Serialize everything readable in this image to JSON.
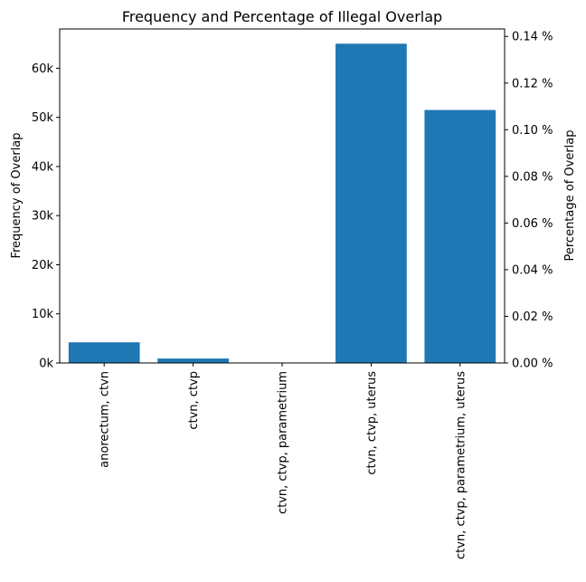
{
  "chart_data": {
    "type": "bar",
    "title": "Frequency and Percentage of Illegal Overlap",
    "xlabel": "",
    "ylabel": "Frequency of Overlap",
    "y2label": "Percentage of Overlap",
    "categories": [
      "anorectum, ctvn",
      "ctvn, ctvp",
      "ctvn, ctvp, parametrium",
      "ctvn, ctvp, uterus",
      "ctvn, ctvp, parametrium, uterus"
    ],
    "values": [
      4200,
      900,
      50,
      65000,
      51500
    ],
    "ylim": [
      0,
      68000
    ],
    "yticks": [
      0,
      10000,
      20000,
      30000,
      40000,
      50000,
      60000
    ],
    "ytick_labels": [
      "0k",
      "10k",
      "20k",
      "30k",
      "40k",
      "50k",
      "60k"
    ],
    "y2lim": [
      0,
      0.1432
    ],
    "y2ticks": [
      0,
      0.02,
      0.04,
      0.06,
      0.08,
      0.1,
      0.12,
      0.14
    ],
    "y2tick_labels": [
      "0.00 %",
      "0.02 %",
      "0.04 %",
      "0.06 %",
      "0.08 %",
      "0.10 %",
      "0.12 %",
      "0.14 %"
    ],
    "bar_color": "#1f77b4",
    "grid": false,
    "legend": "none"
  }
}
